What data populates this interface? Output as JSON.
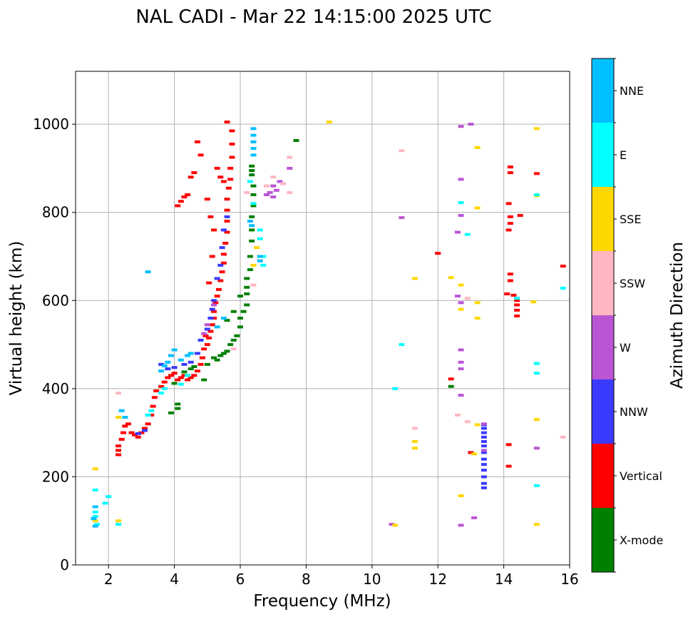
{
  "title": "NAL CADI - Mar 22 14:15:00 2025 UTC",
  "chart_data": {
    "type": "scatter",
    "title": "NAL CADI - Mar 22 14:15:00 2025 UTC",
    "xlabel": "Frequency (MHz)",
    "ylabel": "Virtual height (km)",
    "xlim": [
      1,
      16
    ],
    "ylim": [
      0,
      1120
    ],
    "xticks": [
      2,
      4,
      6,
      8,
      10,
      12,
      14,
      16
    ],
    "yticks": [
      0,
      200,
      400,
      600,
      800,
      1000
    ],
    "xtick_labels": [
      "2",
      "4",
      "6",
      "8",
      "10",
      "12",
      "14",
      "16"
    ],
    "ytick_labels": [
      "0",
      "200",
      "400",
      "600",
      "800",
      "1000"
    ],
    "grid": true,
    "colorbar": {
      "label": "Azimuth Direction",
      "categories": [
        "X-mode",
        "Vertical",
        "NNW",
        "W",
        "SSW",
        "SSE",
        "E",
        "NNE"
      ],
      "colors": [
        "#008000",
        "#ff0000",
        "#3a3aff",
        "#ba55d3",
        "#ffb6c1",
        "#ffd700",
        "#00ffff",
        "#00bfff"
      ]
    },
    "series": [
      {
        "name": "X-mode",
        "color": "#008000",
        "points": [
          [
            3.9,
            345
          ],
          [
            4.1,
            355
          ],
          [
            4.1,
            365
          ],
          [
            4.0,
            412
          ],
          [
            4.3,
            438
          ],
          [
            4.5,
            445
          ],
          [
            4.6,
            450
          ],
          [
            4.9,
            420
          ],
          [
            5.0,
            455
          ],
          [
            5.2,
            470
          ],
          [
            5.3,
            465
          ],
          [
            5.4,
            475
          ],
          [
            5.5,
            480
          ],
          [
            5.6,
            485
          ],
          [
            5.7,
            500
          ],
          [
            5.8,
            510
          ],
          [
            5.9,
            520
          ],
          [
            6.0,
            540
          ],
          [
            6.0,
            560
          ],
          [
            6.1,
            575
          ],
          [
            6.2,
            590
          ],
          [
            6.2,
            615
          ],
          [
            6.2,
            630
          ],
          [
            6.2,
            650
          ],
          [
            6.3,
            670
          ],
          [
            6.3,
            700
          ],
          [
            6.35,
            735
          ],
          [
            6.35,
            760
          ],
          [
            6.35,
            790
          ],
          [
            6.4,
            815
          ],
          [
            6.4,
            840
          ],
          [
            6.4,
            860
          ],
          [
            6.35,
            885
          ],
          [
            6.35,
            895
          ],
          [
            6.35,
            905
          ],
          [
            7.7,
            963
          ],
          [
            12.4,
            405
          ],
          [
            5.6,
            555
          ],
          [
            5.8,
            575
          ],
          [
            6.0,
            610
          ]
        ]
      },
      {
        "name": "Vertical",
        "color": "#ff0000",
        "points": [
          [
            2.3,
            250
          ],
          [
            2.3,
            260
          ],
          [
            2.3,
            270
          ],
          [
            2.4,
            285
          ],
          [
            2.45,
            300
          ],
          [
            2.5,
            315
          ],
          [
            2.6,
            320
          ],
          [
            2.7,
            300
          ],
          [
            2.8,
            295
          ],
          [
            2.9,
            290
          ],
          [
            3.0,
            300
          ],
          [
            3.1,
            310
          ],
          [
            3.2,
            320
          ],
          [
            3.3,
            340
          ],
          [
            3.35,
            360
          ],
          [
            3.4,
            380
          ],
          [
            3.45,
            395
          ],
          [
            3.6,
            405
          ],
          [
            3.7,
            415
          ],
          [
            3.8,
            425
          ],
          [
            3.9,
            430
          ],
          [
            4.0,
            435
          ],
          [
            4.1,
            420
          ],
          [
            4.2,
            425
          ],
          [
            4.3,
            430
          ],
          [
            4.4,
            420
          ],
          [
            4.5,
            425
          ],
          [
            4.6,
            430
          ],
          [
            4.7,
            440
          ],
          [
            4.8,
            455
          ],
          [
            4.85,
            470
          ],
          [
            4.9,
            490
          ],
          [
            5.0,
            500
          ],
          [
            5.05,
            515
          ],
          [
            5.1,
            530
          ],
          [
            5.15,
            545
          ],
          [
            5.2,
            560
          ],
          [
            5.2,
            575
          ],
          [
            5.25,
            595
          ],
          [
            5.3,
            610
          ],
          [
            5.35,
            625
          ],
          [
            5.4,
            645
          ],
          [
            5.45,
            665
          ],
          [
            5.5,
            685
          ],
          [
            5.5,
            705
          ],
          [
            5.55,
            730
          ],
          [
            5.6,
            755
          ],
          [
            5.6,
            780
          ],
          [
            5.6,
            805
          ],
          [
            5.6,
            830
          ],
          [
            5.65,
            855
          ],
          [
            5.7,
            875
          ],
          [
            5.7,
            900
          ],
          [
            5.75,
            925
          ],
          [
            5.75,
            955
          ],
          [
            5.75,
            985
          ],
          [
            5.6,
            1005
          ],
          [
            4.1,
            815
          ],
          [
            4.2,
            825
          ],
          [
            4.3,
            835
          ],
          [
            4.4,
            840
          ],
          [
            4.5,
            880
          ],
          [
            4.6,
            890
          ],
          [
            4.7,
            960
          ],
          [
            4.8,
            930
          ],
          [
            5.3,
            900
          ],
          [
            5.4,
            880
          ],
          [
            5.5,
            870
          ],
          [
            5.0,
            830
          ],
          [
            5.1,
            790
          ],
          [
            5.2,
            760
          ],
          [
            4.95,
            520
          ],
          [
            5.05,
            640
          ],
          [
            5.15,
            700
          ],
          [
            13.0,
            255
          ],
          [
            12.4,
            422
          ],
          [
            12.0,
            707
          ],
          [
            14.15,
            273
          ],
          [
            14.15,
            224
          ],
          [
            14.2,
            660
          ],
          [
            14.2,
            645
          ],
          [
            14.1,
            615
          ],
          [
            14.3,
            612
          ],
          [
            14.4,
            600
          ],
          [
            14.4,
            590
          ],
          [
            14.4,
            578
          ],
          [
            14.4,
            565
          ],
          [
            14.2,
            790
          ],
          [
            14.2,
            775
          ],
          [
            14.15,
            760
          ],
          [
            14.15,
            820
          ],
          [
            14.2,
            890
          ],
          [
            14.2,
            903
          ],
          [
            14.5,
            793
          ],
          [
            15.0,
            888
          ],
          [
            15.8,
            678
          ]
        ]
      },
      {
        "name": "NNW",
        "color": "#3a3aff",
        "points": [
          [
            3.6,
            455
          ],
          [
            3.8,
            445
          ],
          [
            4.0,
            448
          ],
          [
            4.3,
            455
          ],
          [
            4.5,
            460
          ],
          [
            4.7,
            480
          ],
          [
            4.8,
            510
          ],
          [
            5.0,
            535
          ],
          [
            5.1,
            560
          ],
          [
            5.15,
            580
          ],
          [
            5.2,
            600
          ],
          [
            5.3,
            650
          ],
          [
            5.4,
            680
          ],
          [
            5.45,
            720
          ],
          [
            5.5,
            760
          ],
          [
            5.6,
            790
          ],
          [
            2.9,
            298
          ],
          [
            3.1,
            305
          ],
          [
            13.4,
            318
          ],
          [
            13.4,
            310
          ],
          [
            13.4,
            300
          ],
          [
            13.4,
            290
          ],
          [
            13.4,
            280
          ],
          [
            13.4,
            270
          ],
          [
            13.4,
            255
          ],
          [
            13.4,
            240
          ],
          [
            13.4,
            228
          ],
          [
            13.4,
            215
          ],
          [
            13.4,
            200
          ],
          [
            13.4,
            185
          ],
          [
            13.4,
            175
          ]
        ]
      },
      {
        "name": "W",
        "color": "#ba55d3",
        "points": [
          [
            4.9,
            525
          ],
          [
            5.0,
            545
          ],
          [
            5.2,
            590
          ],
          [
            6.9,
            845
          ],
          [
            7.0,
            860
          ],
          [
            7.1,
            850
          ],
          [
            7.2,
            870
          ],
          [
            7.5,
            900
          ],
          [
            7.0,
            835
          ],
          [
            6.8,
            840
          ],
          [
            10.6,
            92
          ],
          [
            12.7,
            90
          ],
          [
            12.7,
            385
          ],
          [
            12.7,
            445
          ],
          [
            12.7,
            460
          ],
          [
            12.7,
            488
          ],
          [
            12.7,
            595
          ],
          [
            12.6,
            610
          ],
          [
            12.6,
            755
          ],
          [
            12.7,
            793
          ],
          [
            12.7,
            875
          ],
          [
            12.7,
            995
          ],
          [
            13.0,
            1000
          ],
          [
            13.1,
            107
          ],
          [
            15.0,
            265
          ],
          [
            10.9,
            788
          ],
          [
            13.4,
            320
          ],
          [
            13.4,
            260
          ]
        ]
      },
      {
        "name": "SSW",
        "color": "#ffb6c1",
        "points": [
          [
            2.3,
            390
          ],
          [
            5.8,
            490
          ],
          [
            6.4,
            635
          ],
          [
            6.8,
            860
          ],
          [
            7.0,
            880
          ],
          [
            7.3,
            865
          ],
          [
            7.5,
            845
          ],
          [
            7.5,
            925
          ],
          [
            10.9,
            940
          ],
          [
            11.3,
            310
          ],
          [
            12.6,
            340
          ],
          [
            12.9,
            325
          ],
          [
            15.8,
            290
          ],
          [
            12.9,
            605
          ],
          [
            6.2,
            845
          ]
        ]
      },
      {
        "name": "SSE",
        "color": "#ffd700",
        "points": [
          [
            1.6,
            218
          ],
          [
            1.6,
            100
          ],
          [
            2.3,
            335
          ],
          [
            2.3,
            100
          ],
          [
            6.5,
            720
          ],
          [
            6.4,
            680
          ],
          [
            8.7,
            1005
          ],
          [
            10.7,
            90
          ],
          [
            11.3,
            650
          ],
          [
            11.3,
            280
          ],
          [
            11.3,
            265
          ],
          [
            12.4,
            652
          ],
          [
            12.7,
            635
          ],
          [
            12.7,
            580
          ],
          [
            12.7,
            157
          ],
          [
            13.2,
            595
          ],
          [
            13.2,
            560
          ],
          [
            13.2,
            318
          ],
          [
            13.2,
            810
          ],
          [
            13.2,
            947
          ],
          [
            14.9,
            597
          ],
          [
            15.0,
            990
          ],
          [
            15.0,
            838
          ],
          [
            15.0,
            330
          ],
          [
            15.0,
            92
          ],
          [
            13.1,
            252
          ]
        ]
      },
      {
        "name": "E",
        "color": "#00ffff",
        "points": [
          [
            1.6,
            170
          ],
          [
            1.6,
            120
          ],
          [
            1.6,
            110
          ],
          [
            1.65,
            92
          ],
          [
            1.9,
            140
          ],
          [
            2.0,
            155
          ],
          [
            2.3,
            92
          ],
          [
            3.2,
            340
          ],
          [
            3.3,
            350
          ],
          [
            3.6,
            390
          ],
          [
            3.7,
            400
          ],
          [
            4.2,
            410
          ],
          [
            4.4,
            430
          ],
          [
            6.7,
            700
          ],
          [
            6.7,
            680
          ],
          [
            6.6,
            740
          ],
          [
            6.6,
            760
          ],
          [
            6.4,
            820
          ],
          [
            6.3,
            870
          ],
          [
            10.7,
            400
          ],
          [
            10.9,
            500
          ],
          [
            12.7,
            822
          ],
          [
            12.9,
            750
          ],
          [
            14.4,
            605
          ],
          [
            15.0,
            457
          ],
          [
            15.0,
            435
          ],
          [
            15.0,
            180
          ],
          [
            15.0,
            840
          ],
          [
            15.8,
            628
          ]
        ]
      },
      {
        "name": "NNE",
        "color": "#00bfff",
        "points": [
          [
            1.55,
            105
          ],
          [
            1.6,
            132
          ],
          [
            1.6,
            88
          ],
          [
            2.4,
            350
          ],
          [
            2.5,
            335
          ],
          [
            3.2,
            665
          ],
          [
            3.6,
            440
          ],
          [
            3.7,
            452
          ],
          [
            3.8,
            460
          ],
          [
            3.9,
            475
          ],
          [
            4.0,
            488
          ],
          [
            4.2,
            465
          ],
          [
            4.4,
            475
          ],
          [
            4.5,
            480
          ],
          [
            5.3,
            540
          ],
          [
            5.5,
            560
          ],
          [
            6.4,
            990
          ],
          [
            6.4,
            975
          ],
          [
            6.4,
            960
          ],
          [
            6.4,
            945
          ],
          [
            6.4,
            930
          ],
          [
            6.3,
            780
          ],
          [
            6.35,
            770
          ],
          [
            6.6,
            700
          ],
          [
            6.6,
            690
          ]
        ]
      }
    ]
  }
}
